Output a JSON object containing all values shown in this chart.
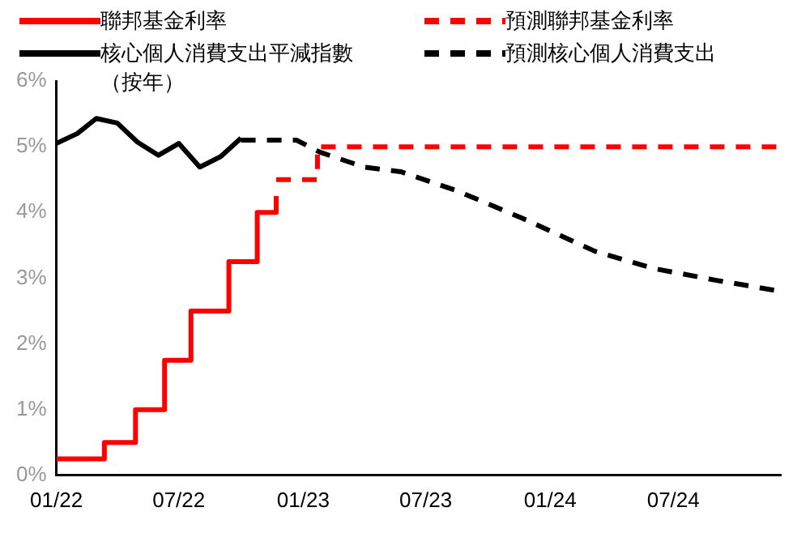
{
  "chart_data": {
    "type": "line",
    "legend": "top",
    "marker": "none",
    "grid": false,
    "xlim": [
      "2022-01-01",
      "2024-12-07"
    ],
    "xticks": [
      {
        "value": "2022-01",
        "label": "01/22"
      },
      {
        "value": "2022-07",
        "label": "07/22"
      },
      {
        "value": "2023-01",
        "label": "01/23"
      },
      {
        "value": "2023-07",
        "label": "07/23"
      },
      {
        "value": "2024-01",
        "label": "01/24"
      },
      {
        "value": "2024-07",
        "label": "07/24"
      }
    ],
    "ylim": [
      0,
      6
    ],
    "yticks": [
      {
        "value": 0,
        "label": "0%"
      },
      {
        "value": 1,
        "label": "1%"
      },
      {
        "value": 2,
        "label": "2%"
      },
      {
        "value": 3,
        "label": "3%"
      },
      {
        "value": 4,
        "label": "4%"
      },
      {
        "value": 5,
        "label": "5%"
      },
      {
        "value": 6,
        "label": "6%"
      }
    ],
    "series": [
      {
        "name": "聯邦基金利率",
        "type": "step",
        "color": "#ff0000",
        "line_style": "solid",
        "x": [
          "2022-01-01",
          "2022-03-13",
          "2022-04-28",
          "2022-06-10",
          "2022-07-19",
          "2022-09-13",
          "2022-10-25",
          "2022-11-22"
        ],
        "values": [
          0.25,
          0.5,
          1,
          1.75,
          2.5,
          3.25,
          4,
          4.25
        ]
      },
      {
        "name": "預測聯邦基金利率",
        "type": "step",
        "color": "#ff0000",
        "line_style": "dashed",
        "x": [
          "2022-11-22",
          "2023-01-22",
          "2024-12-07"
        ],
        "values": [
          4.5,
          5,
          5
        ]
      },
      {
        "name": "核心個人消費支出平減指數（按年）",
        "color": "#000000",
        "line_style": "solid",
        "x": [
          "2022-01",
          "2022-02",
          "2022-03",
          "2022-04",
          "2022-05",
          "2022-06",
          "2022-07",
          "2022-08",
          "2022-09",
          "2022-10"
        ],
        "values": [
          5.05,
          5.2,
          5.43,
          5.36,
          5.07,
          4.87,
          5.05,
          4.69,
          4.85,
          5.13
        ]
      },
      {
        "name": "預測核心個人消費支出",
        "color": "#000000",
        "line_style": "dashed",
        "x": [
          "2022-10",
          "2022-12-22",
          "2023-01-25",
          "2023-04",
          "2023-05-25",
          "2023-08-16",
          "2023-11-19",
          "2024-03-07",
          "2024-06",
          "2024-09",
          "2024-12-07"
        ],
        "values": [
          5.1,
          5.1,
          4.92,
          4.69,
          4.62,
          4.33,
          3.92,
          3.41,
          3.15,
          2.97,
          2.8
        ]
      }
    ]
  }
}
